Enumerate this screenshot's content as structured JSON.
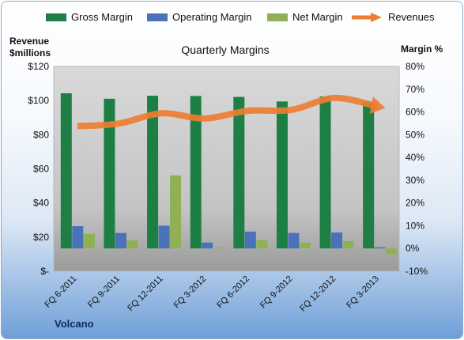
{
  "chart_data": {
    "type": "bar",
    "title": "Quarterly Margins",
    "ylabel_left": [
      "Revenue",
      "$millions"
    ],
    "ylabel_right": "Margin %",
    "categories": [
      "FQ 6-2011",
      "FQ 9-2011",
      "FQ 12-2011",
      "FQ 3-2012",
      "FQ 6-2012",
      "FQ 9-2012",
      "FQ 12-2012",
      "FQ 3-2013"
    ],
    "series": [
      {
        "name": "Gross Margin",
        "axis": "right",
        "kind": "bar",
        "color": "#1e7f45",
        "values": [
          68.2,
          65.8,
          67.1,
          67.0,
          66.6,
          64.6,
          66.8,
          64.5
        ]
      },
      {
        "name": "Operating Margin",
        "axis": "right",
        "kind": "bar",
        "color": "#4a72b8",
        "values": [
          9.8,
          6.8,
          10.0,
          2.6,
          7.4,
          6.8,
          7.0,
          0.5
        ]
      },
      {
        "name": "Net Margin",
        "axis": "right",
        "kind": "bar",
        "color": "#90b056",
        "values": [
          6.4,
          3.6,
          32.1,
          0.4,
          3.7,
          2.5,
          3.2,
          -2.6
        ]
      },
      {
        "name": "Revenues",
        "axis": "left",
        "kind": "line",
        "color": "#ed7d31",
        "values": [
          85.0,
          86.5,
          92.5,
          89.5,
          94.0,
          94.5,
          101.5,
          96.5
        ]
      }
    ],
    "y_left": {
      "min": 0,
      "max": 120,
      "step": 20,
      "tick_labels": [
        "$-",
        "$20",
        "$40",
        "$60",
        "$80",
        "$100",
        "$120"
      ]
    },
    "y_right": {
      "min": -10,
      "max": 80,
      "step": 10,
      "tick_labels": [
        "-10%",
        "0%",
        "10%",
        "20%",
        "30%",
        "40%",
        "50%",
        "60%",
        "70%",
        "80%"
      ]
    },
    "legend_position": "top",
    "grid": false
  },
  "footer": {
    "label": "Volcano"
  }
}
